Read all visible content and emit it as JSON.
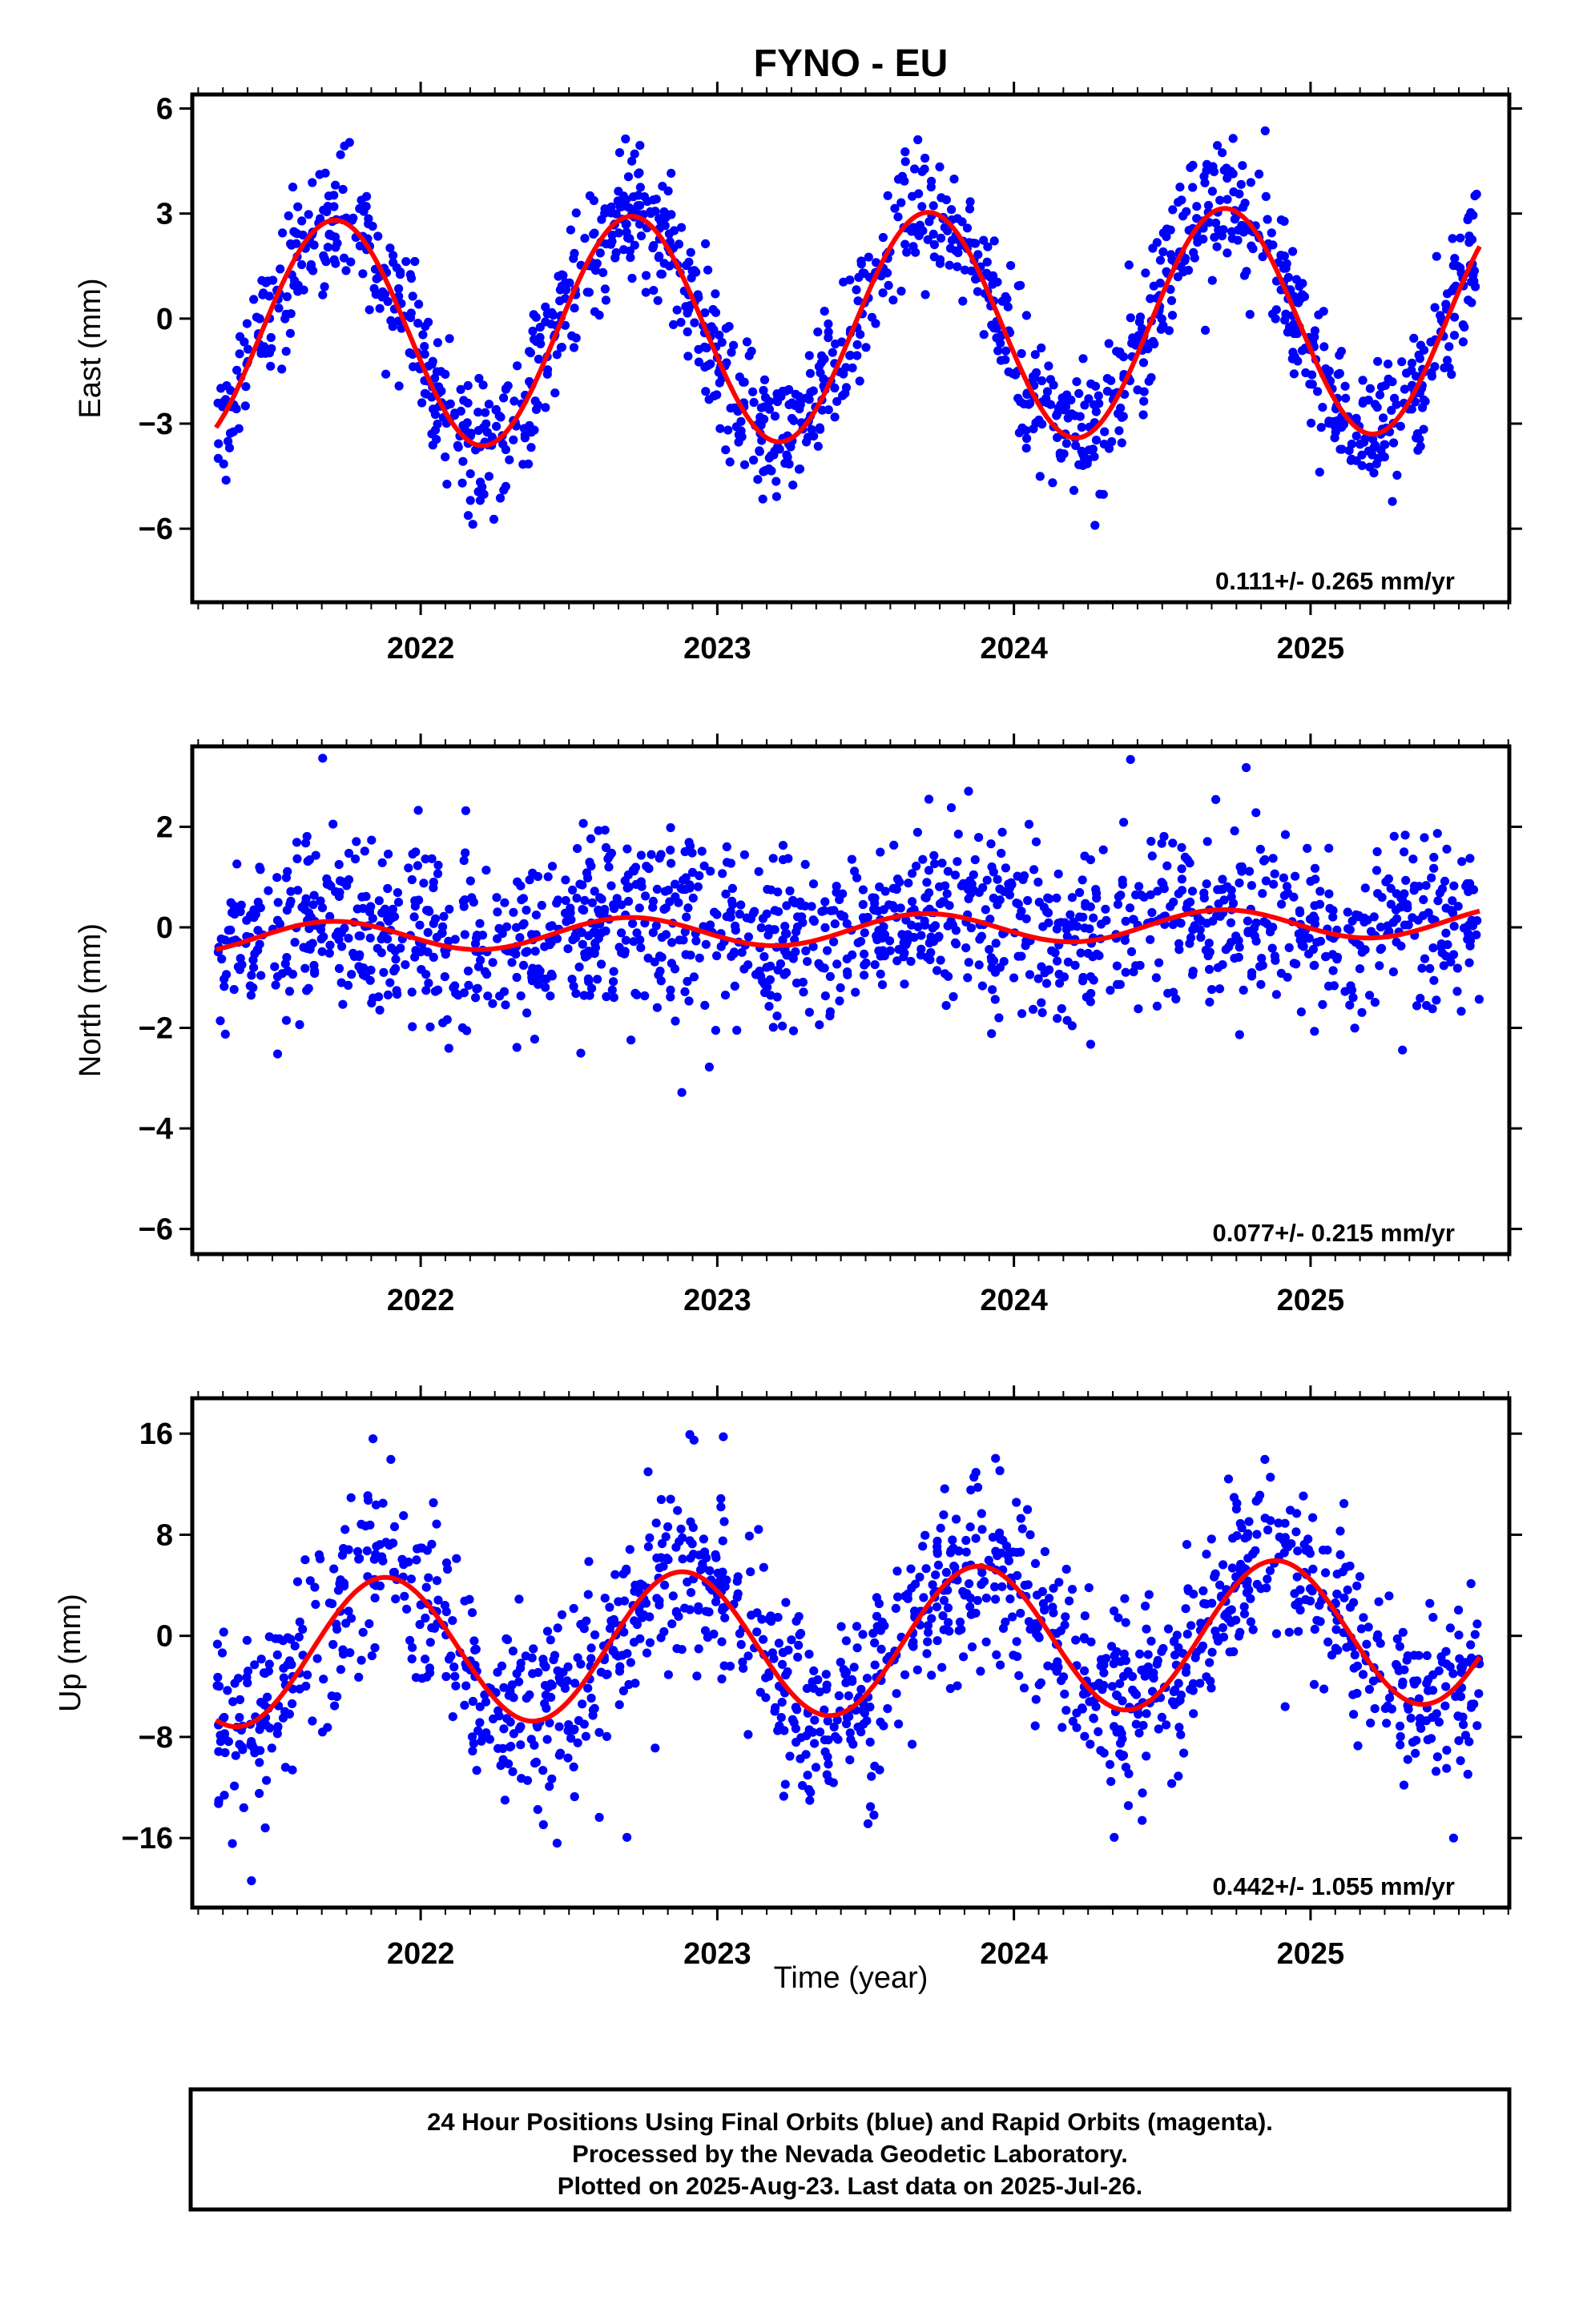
{
  "title": "FYNO - EU",
  "xlabel": "Time (year)",
  "footer": {
    "line1": "24 Hour Positions Using Final Orbits (blue) and Rapid Orbits (magenta).",
    "line2": "Processed by the Nevada Geodetic Laboratory.",
    "line3": "Plotted on 2025-Aug-23. Last data on 2025-Jul-26."
  },
  "colors": {
    "points": "#0000ff",
    "fit": "#ff0000",
    "frame": "#000000"
  },
  "chart_data": [
    {
      "type": "scatter",
      "name": "east",
      "ylabel": "East (mm)",
      "rate_label": "0.111+/- 0.265 mm/yr",
      "xlim": [
        2021.23,
        2025.67
      ],
      "ylim": [
        -8.1,
        6.4
      ],
      "xticks": [
        2022,
        2023,
        2024,
        2025
      ],
      "yticks": [
        6,
        3,
        0,
        -3,
        -6
      ],
      "ytick_labels": [
        "6",
        "3",
        "0",
        "−3",
        "−6"
      ],
      "series": [
        {
          "kind": "points",
          "x_start": 2021.31,
          "x_end": 2025.57,
          "count": 1400,
          "amplitude": 3.25,
          "phase_year": 2021.46,
          "noise_sd": 0.95,
          "offset": -0.25,
          "trend_mm_per_yr": 0.111
        },
        {
          "kind": "fit",
          "amplitude": 3.25,
          "phase_year": 2021.46,
          "offset": -0.25,
          "trend_mm_per_yr": 0.111
        }
      ]
    },
    {
      "type": "scatter",
      "name": "north",
      "ylabel": "North (mm)",
      "rate_label": "0.077+/- 0.215 mm/yr",
      "xlim": [
        2021.23,
        2025.67
      ],
      "ylim": [
        -6.5,
        3.6
      ],
      "xticks": [
        2022,
        2023,
        2024,
        2025
      ],
      "yticks": [
        2,
        0,
        -2,
        -4,
        -6
      ],
      "ytick_labels": [
        "2",
        "0",
        "−2",
        "−4",
        "−6"
      ],
      "series": [
        {
          "kind": "points",
          "x_start": 2021.31,
          "x_end": 2025.57,
          "count": 1400,
          "amplitude": 0.3,
          "phase_year": 2021.45,
          "noise_sd": 0.85,
          "offset": -0.05,
          "trend_mm_per_yr": 0.077
        },
        {
          "kind": "fit",
          "amplitude": 0.3,
          "phase_year": 2021.45,
          "offset": -0.05,
          "trend_mm_per_yr": 0.077
        }
      ]
    },
    {
      "type": "scatter",
      "name": "up",
      "ylabel": "Up (mm)",
      "rate_label": "0.442+/- 1.055 mm/yr",
      "xlim": [
        2021.23,
        2025.67
      ],
      "ylim": [
        -21.5,
        18.8
      ],
      "xticks": [
        2022,
        2023,
        2024,
        2025
      ],
      "yticks": [
        16,
        8,
        0,
        -8,
        -16
      ],
      "ytick_labels": [
        "16",
        "8",
        "0",
        "−8",
        "−16"
      ],
      "series": [
        {
          "kind": "points",
          "x_start": 2021.31,
          "x_end": 2025.57,
          "count": 1400,
          "amplitude": 5.8,
          "phase_year": 2021.63,
          "noise_sd": 3.6,
          "offset": -0.5,
          "trend_mm_per_yr": 0.442
        },
        {
          "kind": "fit",
          "amplitude": 5.8,
          "phase_year": 2021.63,
          "offset": -0.5,
          "trend_mm_per_yr": 0.442
        }
      ]
    }
  ]
}
